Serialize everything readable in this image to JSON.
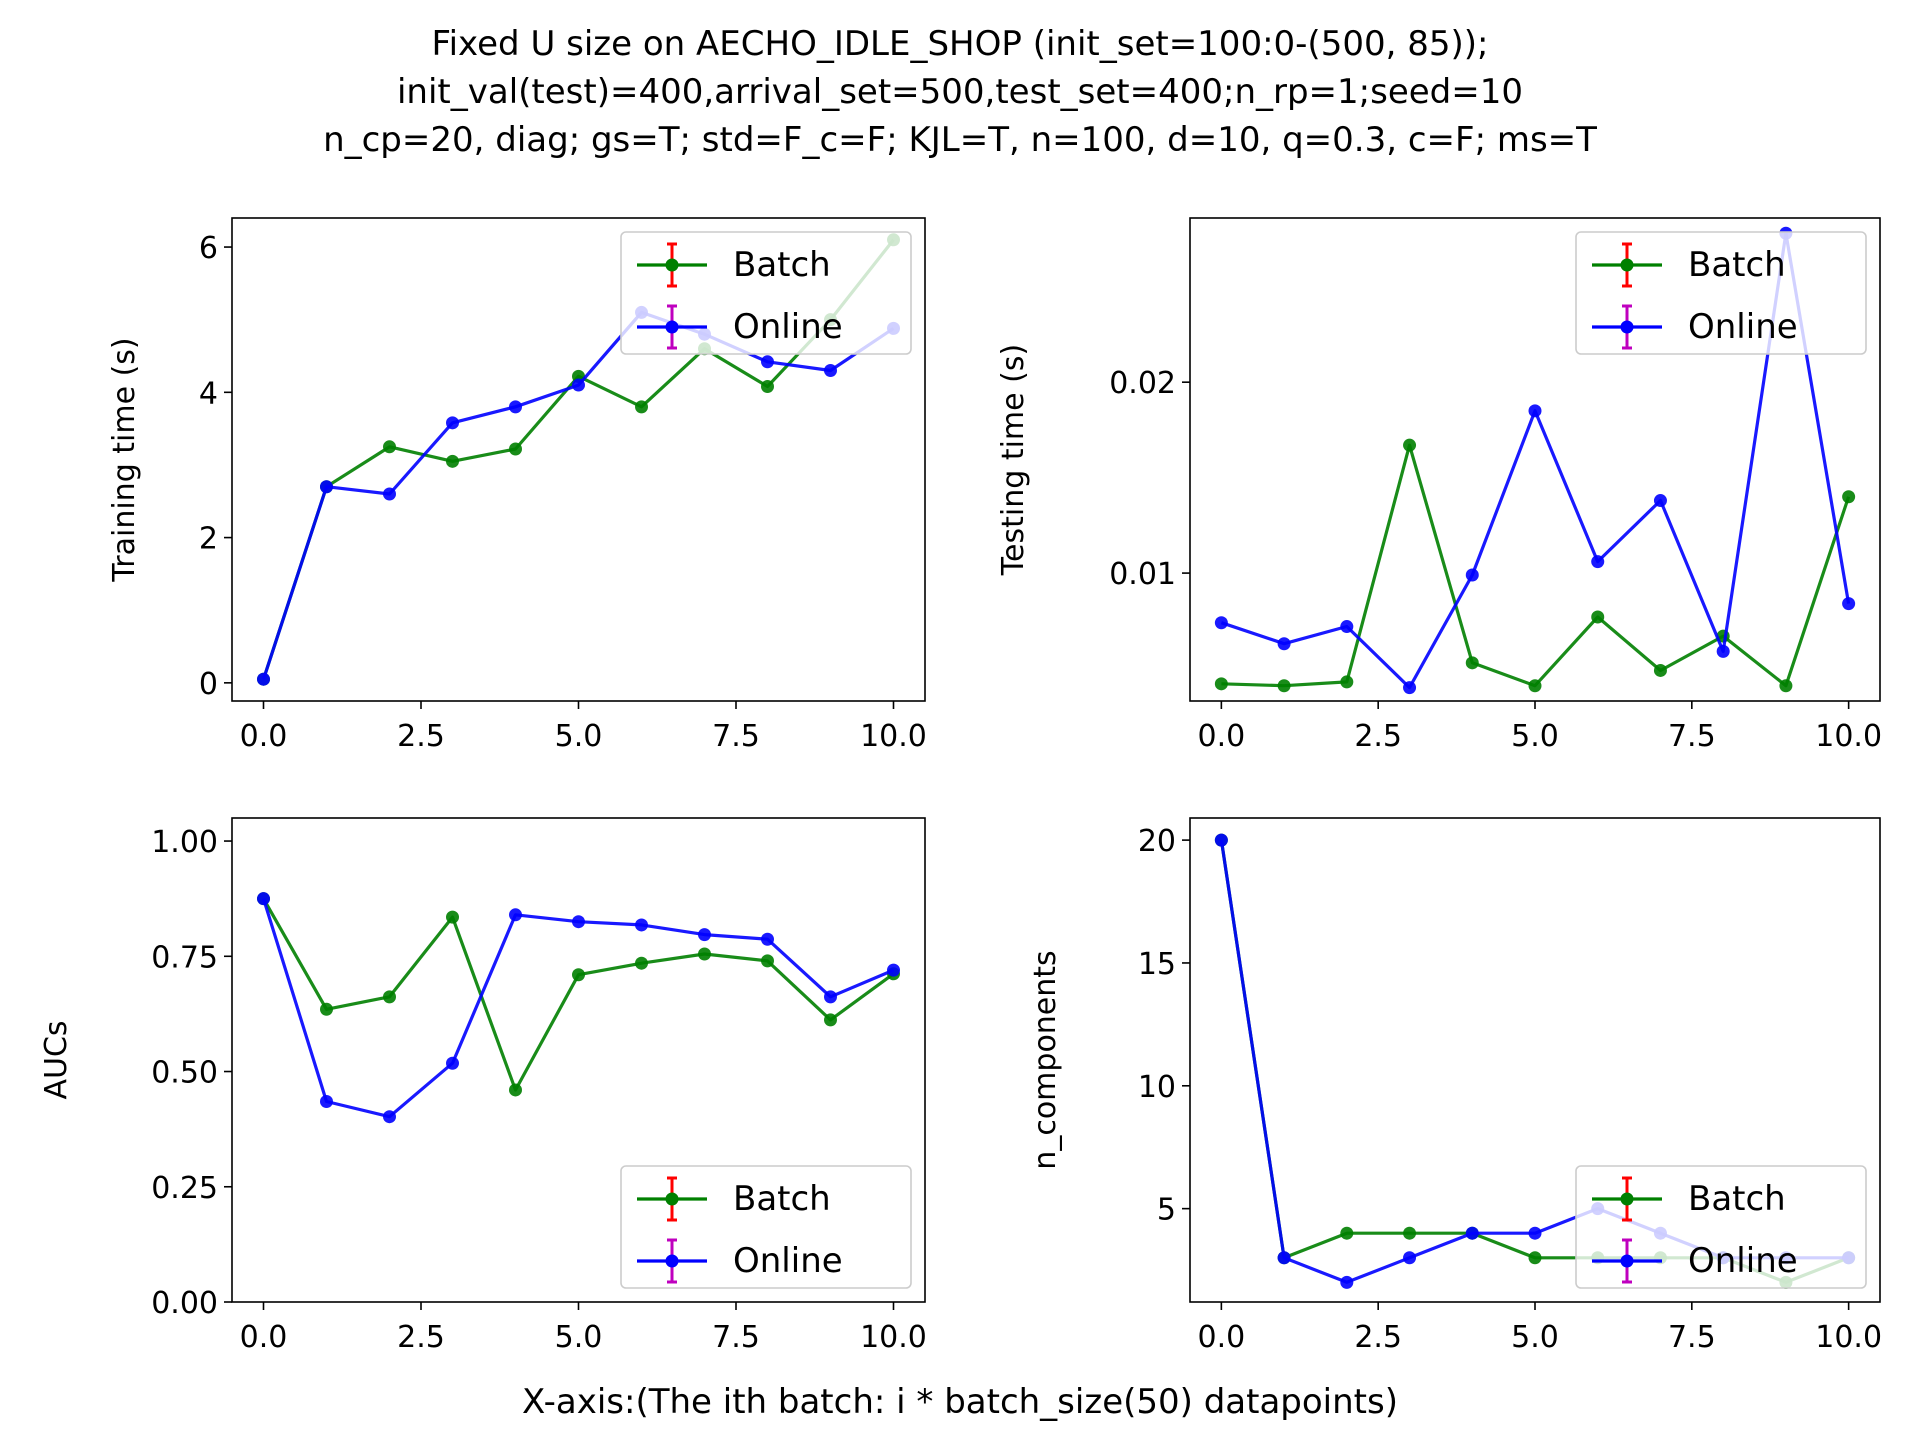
{
  "figure": {
    "title_lines": [
      "Fixed U size on AECHO_IDLE_SHOP (init_set=100:0-(500, 85));",
      "init_val(test)=400,arrival_set=500,test_set=400;n_rp=1;seed=10",
      "n_cp=20, diag; gs=T; std=F_c=F; KJL=T, n=100, d=10, q=0.3, c=F; ms=T"
    ],
    "xlabel": "X-axis:(The ith batch: i * batch_size(50) datapoints)"
  },
  "colors": {
    "batch": "#008000",
    "online": "#0000ff",
    "batch_errorbar": "#ff0000",
    "online_errorbar": "#bf00bf"
  },
  "chart_data": [
    {
      "type": "line",
      "ylabel": "Training time (s)",
      "xlim": [
        -0.5,
        10.5
      ],
      "ylim": [
        -0.25,
        6.4
      ],
      "xticks": [
        0,
        2.5,
        5,
        7.5,
        10
      ],
      "xtick_labels": [
        "0.0",
        "2.5",
        "5.0",
        "7.5",
        "10.0"
      ],
      "yticks": [
        0,
        2,
        4,
        6
      ],
      "ytick_labels": [
        "0",
        "2",
        "4",
        "6"
      ],
      "legend_loc": "upper right",
      "x": [
        0,
        1,
        2,
        3,
        4,
        5,
        6,
        7,
        8,
        9,
        10
      ],
      "series": [
        {
          "name": "Batch",
          "values": [
            0.05,
            2.7,
            3.25,
            3.05,
            3.22,
            4.22,
            3.8,
            4.6,
            4.08,
            5.0,
            6.1
          ]
        },
        {
          "name": "Online",
          "values": [
            0.05,
            2.7,
            2.6,
            3.58,
            3.8,
            4.1,
            5.1,
            4.8,
            4.42,
            4.3,
            4.88
          ]
        }
      ]
    },
    {
      "type": "line",
      "ylabel": "Testing time (s)",
      "xlim": [
        -0.5,
        10.5
      ],
      "ylim": [
        0.0033,
        0.0286
      ],
      "xticks": [
        0,
        2.5,
        5,
        7.5,
        10
      ],
      "xtick_labels": [
        "0.0",
        "2.5",
        "5.0",
        "7.5",
        "10.0"
      ],
      "yticks": [
        0.01,
        0.02
      ],
      "ytick_labels": [
        "0.01",
        "0.02"
      ],
      "legend_loc": "upper right",
      "x": [
        0,
        1,
        2,
        3,
        4,
        5,
        6,
        7,
        8,
        9,
        10
      ],
      "series": [
        {
          "name": "Batch",
          "values": [
            0.0042,
            0.0041,
            0.0043,
            0.0167,
            0.0053,
            0.0041,
            0.0077,
            0.0049,
            0.0067,
            0.0041,
            0.014
          ]
        },
        {
          "name": "Online",
          "values": [
            0.0074,
            0.0063,
            0.0072,
            0.004,
            0.0099,
            0.0185,
            0.0106,
            0.0138,
            0.0059,
            0.0278,
            0.0084
          ]
        }
      ]
    },
    {
      "type": "line",
      "ylabel": "AUCs",
      "xlim": [
        -0.5,
        10.5
      ],
      "ylim": [
        0.0,
        1.05
      ],
      "xticks": [
        0,
        2.5,
        5,
        7.5,
        10
      ],
      "xtick_labels": [
        "0.0",
        "2.5",
        "5.0",
        "7.5",
        "10.0"
      ],
      "yticks": [
        0,
        0.25,
        0.5,
        0.75,
        1.0
      ],
      "ytick_labels": [
        "0.00",
        "0.25",
        "0.50",
        "0.75",
        "1.00"
      ],
      "legend_loc": "lower right",
      "x": [
        0,
        1,
        2,
        3,
        4,
        5,
        6,
        7,
        8,
        9,
        10
      ],
      "series": [
        {
          "name": "Batch",
          "values": [
            0.875,
            0.635,
            0.662,
            0.835,
            0.46,
            0.71,
            0.735,
            0.755,
            0.74,
            0.612,
            0.712
          ]
        },
        {
          "name": "Online",
          "values": [
            0.875,
            0.435,
            0.402,
            0.518,
            0.84,
            0.825,
            0.818,
            0.797,
            0.787,
            0.662,
            0.72
          ]
        }
      ]
    },
    {
      "type": "line",
      "ylabel": "n_components",
      "xlim": [
        -0.5,
        10.5
      ],
      "ylim": [
        1.2,
        20.9
      ],
      "xticks": [
        0,
        2.5,
        5,
        7.5,
        10
      ],
      "xtick_labels": [
        "0.0",
        "2.5",
        "5.0",
        "7.5",
        "10.0"
      ],
      "yticks": [
        5,
        10,
        15,
        20
      ],
      "ytick_labels": [
        "5",
        "10",
        "15",
        "20"
      ],
      "legend_loc": "lower right",
      "x": [
        0,
        1,
        2,
        3,
        4,
        5,
        6,
        7,
        8,
        9,
        10
      ],
      "series": [
        {
          "name": "Batch",
          "values": [
            20,
            3,
            4,
            4,
            4,
            3,
            3,
            3,
            3,
            2,
            3
          ]
        },
        {
          "name": "Online",
          "values": [
            20,
            3,
            2,
            3,
            4,
            4,
            5,
            4,
            3,
            3,
            3
          ]
        }
      ]
    }
  ]
}
